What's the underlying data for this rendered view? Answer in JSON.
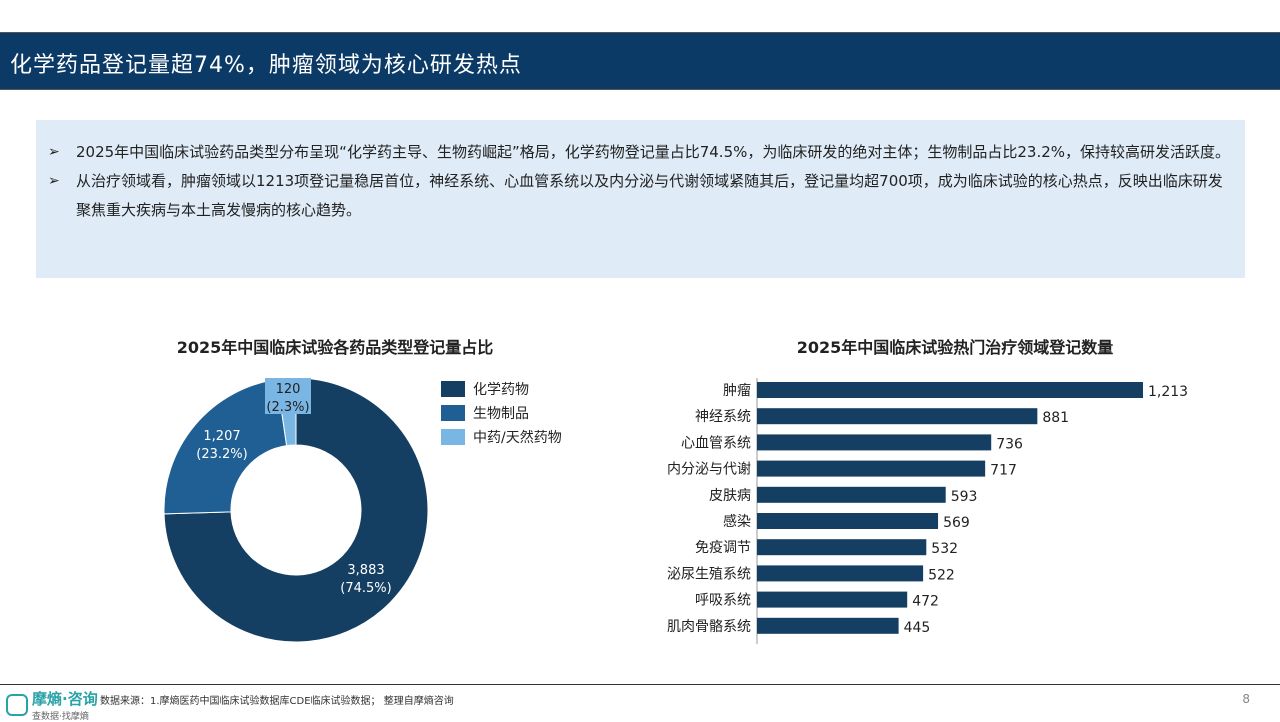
{
  "header": {
    "title": "化学药品登记量超74%，肿瘤领域为核心研发热点"
  },
  "summary": [
    "2025年中国临床试验药品类型分布呈现“化学药主导、生物药崛起”格局，化学药物登记量占比74.5%，为临床研发的绝对主体；生物制品占比23.2%，保持较高研发活跃度。",
    "从治疗领域看，肿瘤领域以1213项登记量稳居首位，神经系统、心血管系统以及内分泌与代谢领域紧随其后，登记量均超700项，成为临床试验的核心热点，反映出临床研发聚焦重大疾病与本土高发慢病的核心趋势。"
  ],
  "bullet_icon": "arrow-right-icon",
  "chart_data": [
    {
      "type": "pie",
      "variant": "donut",
      "title": "2025年中国临床试验各药品类型登记量占比",
      "legend_position": "right",
      "slices": [
        {
          "name": "化学药物",
          "value": 3883,
          "label": "3,883",
          "pct": "(74.5%)",
          "color": "#153f62"
        },
        {
          "name": "生物制品",
          "value": 1207,
          "label": "1,207",
          "pct": "(23.2%)",
          "color": "#1f5f94"
        },
        {
          "name": "中药/天然药物",
          "value": 120,
          "label": "120",
          "pct": "(2.3%)",
          "color": "#7ab6e3"
        }
      ]
    },
    {
      "type": "bar",
      "orientation": "horizontal",
      "title": "2025年中国临床试验热门治疗领域登记数量",
      "color": "#153f62",
      "xlim": [
        0,
        1213
      ],
      "categories": [
        "肿瘤",
        "神经系统",
        "心血管系统",
        "内分泌与代谢",
        "皮肤病",
        "感染",
        "免疫调节",
        "泌尿生殖系统",
        "呼吸系统",
        "肌肉骨骼系统"
      ],
      "values": [
        1213,
        881,
        736,
        717,
        593,
        569,
        532,
        522,
        472,
        445
      ],
      "labels": [
        "1,213",
        "881",
        "736",
        "717",
        "593",
        "569",
        "532",
        "522",
        "472",
        "445"
      ]
    }
  ],
  "footer": {
    "logo_main": "摩熵·咨询",
    "logo_sub": "查数据·找摩熵",
    "source": "数据来源：1.摩熵医药中国临床试验数据库CDE临床试验数据； 整理自摩熵咨询",
    "page": "8"
  }
}
